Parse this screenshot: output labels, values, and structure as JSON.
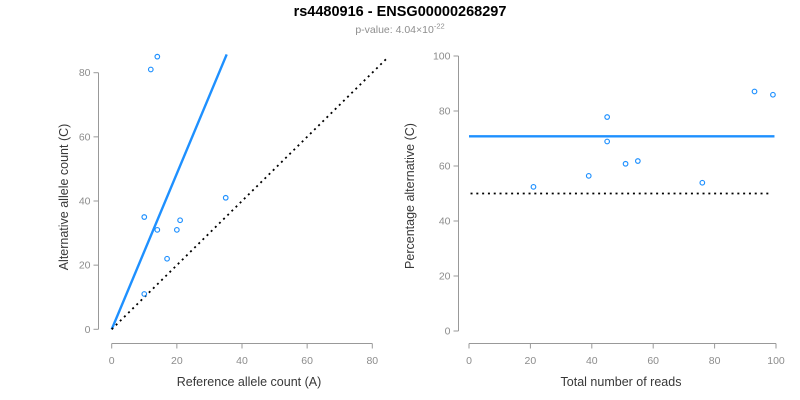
{
  "header": {
    "title": "rs4480916 - ENSG00000268297",
    "subtitle_prefix": "p-value: 4.04×10",
    "subtitle_exponent": "-22"
  },
  "style": {
    "accent_blue": "#1E90FF",
    "line_black": "#000000",
    "axis_line_gray": "#999999",
    "tick_label_gray": "#8c8c8c",
    "axis_title_color": "#383838",
    "subtitle_gray": "#8e8e8e",
    "background": "#ffffff"
  },
  "chart_data": [
    {
      "type": "scatter",
      "name": "allele-count-scatter",
      "title": "",
      "xlabel": "Reference allele count (A)",
      "ylabel": "Alternative allele count (C)",
      "xlim": [
        0,
        80
      ],
      "ylim": [
        0,
        80
      ],
      "xticks": [
        0,
        20,
        40,
        60,
        80
      ],
      "yticks": [
        0,
        20,
        40,
        60,
        80
      ],
      "grid": false,
      "legend": false,
      "point_color": "#1E90FF",
      "points": [
        [
          10,
          11
        ],
        [
          10,
          35
        ],
        [
          12,
          81
        ],
        [
          14,
          31
        ],
        [
          14,
          85
        ],
        [
          17,
          22
        ],
        [
          20,
          31
        ],
        [
          21,
          34
        ],
        [
          35,
          41
        ]
      ],
      "lines": [
        {
          "name": "fit-line",
          "style": "solid",
          "color": "#1E90FF",
          "width": 2.4,
          "from": [
            0,
            0
          ],
          "to": [
            35.3,
            85.7
          ]
        },
        {
          "name": "identity-line",
          "style": "dotted",
          "color": "#000000",
          "width": 1.8,
          "from": [
            0,
            0
          ],
          "to": [
            85,
            85
          ]
        }
      ]
    },
    {
      "type": "scatter",
      "name": "percentage-vs-reads-scatter",
      "title": "",
      "xlabel": "Total number of reads",
      "ylabel": "Percentage alternative (C)",
      "xlim": [
        0,
        100
      ],
      "ylim": [
        0,
        100
      ],
      "xticks": [
        0,
        20,
        40,
        60,
        80,
        100
      ],
      "yticks": [
        0,
        20,
        40,
        60,
        80,
        100
      ],
      "grid": false,
      "legend": false,
      "point_color": "#1E90FF",
      "points": [
        [
          21,
          52.4
        ],
        [
          39,
          56.4
        ],
        [
          45,
          68.9
        ],
        [
          45,
          77.8
        ],
        [
          51,
          60.8
        ],
        [
          55,
          61.8
        ],
        [
          76,
          53.9
        ],
        [
          93,
          87.1
        ],
        [
          99,
          85.9
        ]
      ],
      "lines": [
        {
          "name": "mean-percentage-line",
          "style": "solid",
          "color": "#1E90FF",
          "width": 2.4,
          "from": [
            0,
            70.8
          ],
          "to": [
            99.5,
            70.8
          ]
        },
        {
          "name": "fifty-percent-line",
          "style": "dotted",
          "color": "#000000",
          "width": 1.8,
          "from": [
            0.5,
            50
          ],
          "to": [
            98,
            50
          ]
        }
      ]
    }
  ]
}
